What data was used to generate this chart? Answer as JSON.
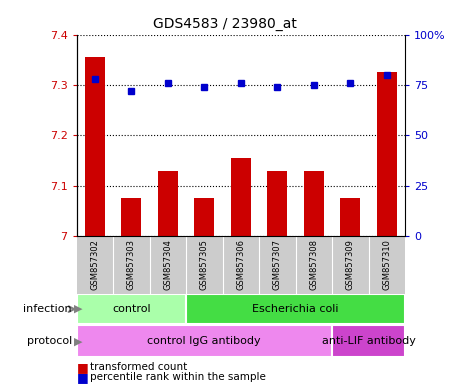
{
  "title": "GDS4583 / 23980_at",
  "samples": [
    "GSM857302",
    "GSM857303",
    "GSM857304",
    "GSM857305",
    "GSM857306",
    "GSM857307",
    "GSM857308",
    "GSM857309",
    "GSM857310"
  ],
  "transformed_count": [
    7.355,
    7.075,
    7.13,
    7.075,
    7.155,
    7.13,
    7.13,
    7.075,
    7.325
  ],
  "percentile_rank": [
    78,
    72,
    76,
    74,
    76,
    74,
    75,
    76,
    80
  ],
  "ylim": [
    7.0,
    7.4
  ],
  "yticks": [
    7.0,
    7.1,
    7.2,
    7.3,
    7.4
  ],
  "ylim_right": [
    0,
    100
  ],
  "yticks_right": [
    0,
    25,
    50,
    75,
    100
  ],
  "bar_color": "#cc0000",
  "dot_color": "#0000cc",
  "bar_width": 0.55,
  "infection_groups": [
    {
      "label": "control",
      "start": 0,
      "end": 3,
      "color": "#aaffaa"
    },
    {
      "label": "Escherichia coli",
      "start": 3,
      "end": 9,
      "color": "#44dd44"
    }
  ],
  "protocol_groups": [
    {
      "label": "control IgG antibody",
      "start": 0,
      "end": 7,
      "color": "#ee88ee"
    },
    {
      "label": "anti-LIF antibody",
      "start": 7,
      "end": 9,
      "color": "#cc44cc"
    }
  ],
  "sample_bg_color": "#cccccc",
  "left_tick_color": "#cc0000",
  "right_tick_color": "#0000cc"
}
